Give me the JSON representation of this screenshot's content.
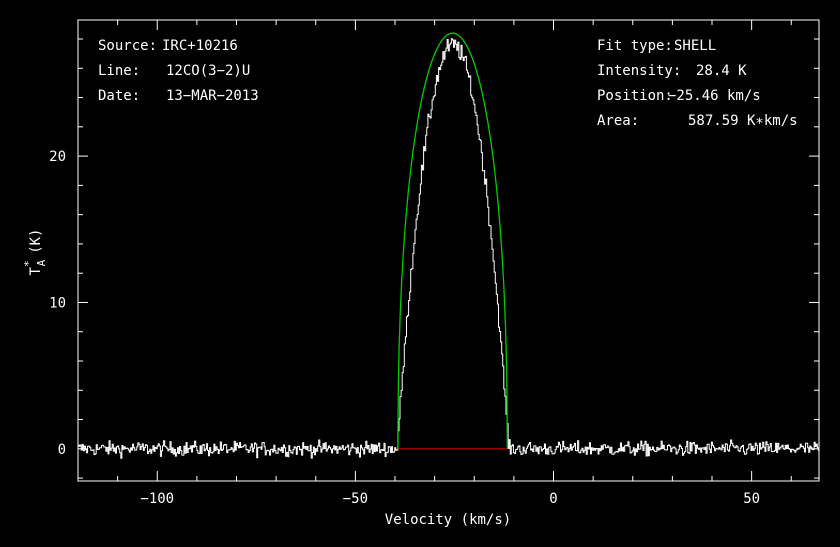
{
  "chart_data": {
    "type": "line",
    "xlabel": "Velocity (km/s)",
    "ylabel_base": "T",
    "ylabel_sub": "A",
    "ylabel_sup": "*",
    "ylabel_unit": "(K)",
    "xlim": [
      -120,
      67
    ],
    "ylim": [
      -2.2,
      29.3
    ],
    "xticks": [
      -100,
      -50,
      0,
      50
    ],
    "xtick_labels": [
      "−100",
      "−50",
      "0",
      "50"
    ],
    "yticks": [
      0,
      10,
      20
    ],
    "ytick_labels": [
      "0",
      "10",
      "20"
    ],
    "series": [
      {
        "name": "spectrum",
        "color": "#ffffff",
        "style": "histogram"
      },
      {
        "name": "fit",
        "color": "#00cc00",
        "model": "shell",
        "center": -25.46,
        "half_width": 13.8,
        "peak": 28.4,
        "horn": -0.08
      },
      {
        "name": "baseline",
        "color": "#cc0000",
        "x": [
          -39.3,
          -11.7
        ],
        "y": [
          0,
          0
        ]
      }
    ],
    "spectrum_profile": {
      "center": -25.46,
      "half_width": 14.1,
      "peak": 27.6,
      "noise": 0.35,
      "x_start": -120,
      "x_end": 67,
      "step": 0.27
    }
  },
  "info_left": [
    {
      "key": "Source:",
      "value": "IRC+10216"
    },
    {
      "key": "Line:",
      "value": "12CO(3−2)U"
    },
    {
      "key": "Date:",
      "value": "13−MAR−2013"
    }
  ],
  "info_right": [
    {
      "key": "Fit type:",
      "value": "SHELL"
    },
    {
      "key": "Intensity:",
      "value": "28.4 K"
    },
    {
      "key": "Position:",
      "value": "−25.46 km/s"
    },
    {
      "key": "Area:",
      "value": "587.59 K∗km/s"
    }
  ],
  "colors": {
    "background": "#000000",
    "axes": "#ffffff",
    "spectrum": "#ffffff",
    "fit": "#00cc00",
    "baseline": "#cc0000"
  }
}
